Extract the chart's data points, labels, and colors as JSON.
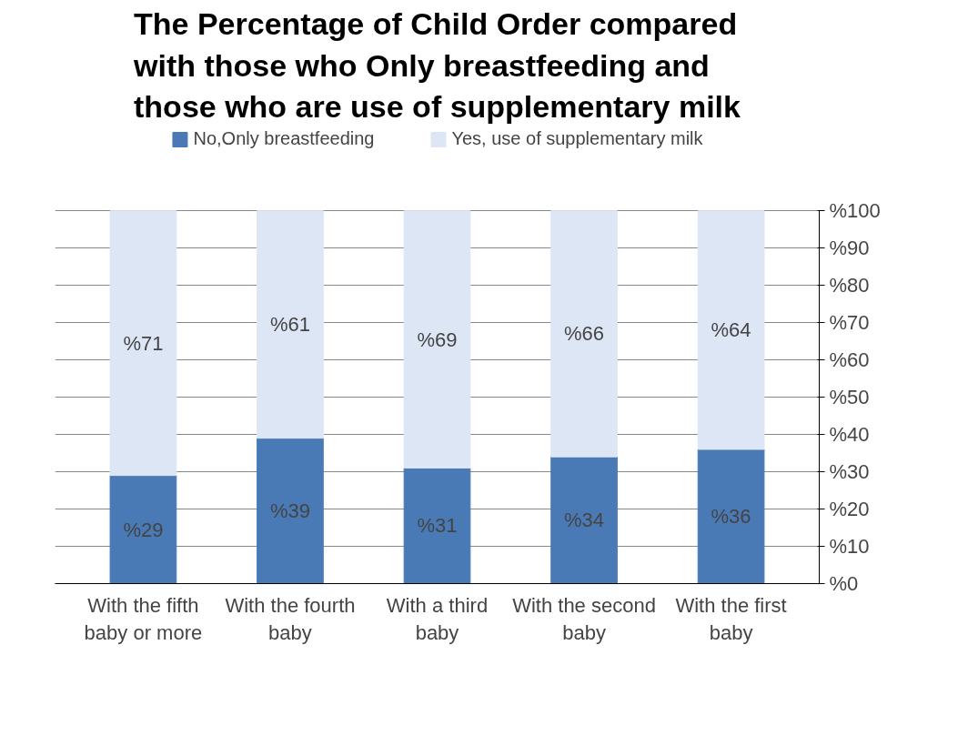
{
  "chart_data": {
    "type": "bar",
    "stacked": true,
    "title": "The Percentage of Child Order compared with those who Only breastfeeding and those who are use of supplementary milk",
    "categories": [
      "With the fifth baby or more",
      "With the fourth baby",
      "With a third baby",
      "With the second baby",
      "With the first baby"
    ],
    "series": [
      {
        "name": "No,Only breastfeeding",
        "color": "#4a7ab5",
        "values": [
          29,
          39,
          31,
          34,
          36
        ],
        "value_labels": [
          "%29",
          "%39",
          "%31",
          "%34",
          "%36"
        ]
      },
      {
        "name": "Yes, use of supplementary milk",
        "color": "#dce6f4",
        "values": [
          71,
          61,
          69,
          66,
          64
        ],
        "value_labels": [
          "%71",
          "%61",
          "%69",
          "%66",
          "%64"
        ]
      }
    ],
    "ylim": [
      0,
      100
    ],
    "yticks": [
      {
        "value": 0,
        "label": "%0"
      },
      {
        "value": 10,
        "label": "%10"
      },
      {
        "value": 20,
        "label": "%20"
      },
      {
        "value": 30,
        "label": "%30"
      },
      {
        "value": 40,
        "label": "%40"
      },
      {
        "value": 50,
        "label": "%50"
      },
      {
        "value": 60,
        "label": "%60"
      },
      {
        "value": 70,
        "label": "%70"
      },
      {
        "value": 80,
        "label": "%80"
      },
      {
        "value": 90,
        "label": "%90"
      },
      {
        "value": 100,
        "label": "%100"
      }
    ],
    "grid": "y",
    "legend": "top"
  }
}
